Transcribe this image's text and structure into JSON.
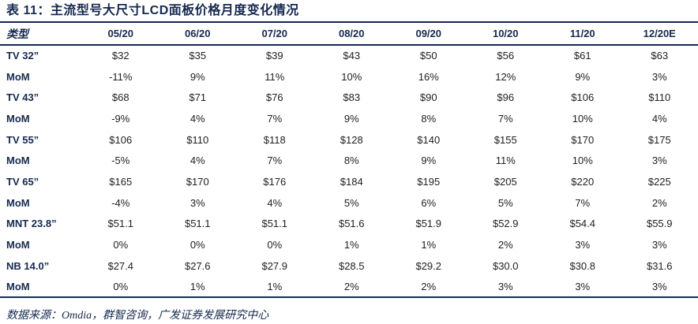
{
  "colors": {
    "navy": "#15294f",
    "data_text": "#212121",
    "background": "#ffffff"
  },
  "table": {
    "title": "表 11：主流型号大尺寸LCD面板价格月度变化情况",
    "columns": [
      "类型",
      "05/20",
      "06/20",
      "07/20",
      "08/20",
      "09/20",
      "10/20",
      "11/20",
      "12/20E"
    ],
    "rows": [
      {
        "label": "TV 32”",
        "values": [
          "$32",
          "$35",
          "$39",
          "$43",
          "$50",
          "$56",
          "$61",
          "$63"
        ]
      },
      {
        "label": "MoM",
        "values": [
          "-11%",
          "9%",
          "11%",
          "10%",
          "16%",
          "12%",
          "9%",
          "3%"
        ]
      },
      {
        "label": "TV 43”",
        "values": [
          "$68",
          "$71",
          "$76",
          "$83",
          "$90",
          "$96",
          "$106",
          "$110"
        ]
      },
      {
        "label": "MoM",
        "values": [
          "-9%",
          "4%",
          "7%",
          "9%",
          "8%",
          "7%",
          "10%",
          "4%"
        ]
      },
      {
        "label": "TV 55”",
        "values": [
          "$106",
          "$110",
          "$118",
          "$128",
          "$140",
          "$155",
          "$170",
          "$175"
        ]
      },
      {
        "label": "MoM",
        "values": [
          "-5%",
          "4%",
          "7%",
          "8%",
          "9%",
          "11%",
          "10%",
          "3%"
        ]
      },
      {
        "label": "TV 65”",
        "values": [
          "$165",
          "$170",
          "$176",
          "$184",
          "$195",
          "$205",
          "$220",
          "$225"
        ]
      },
      {
        "label": "MoM",
        "values": [
          "-4%",
          "3%",
          "4%",
          "5%",
          "6%",
          "5%",
          "7%",
          "2%"
        ]
      },
      {
        "label": "MNT 23.8”",
        "values": [
          "$51.1",
          "$51.1",
          "$51.1",
          "$51.6",
          "$51.9",
          "$52.9",
          "$54.4",
          "$55.9"
        ]
      },
      {
        "label": "MoM",
        "values": [
          "0%",
          "0%",
          "0%",
          "1%",
          "1%",
          "2%",
          "3%",
          "3%"
        ]
      },
      {
        "label": "NB 14.0”",
        "values": [
          "$27.4",
          "$27.6",
          "$27.9",
          "$28.5",
          "$29.2",
          "$30.0",
          "$30.8",
          "$31.6"
        ]
      },
      {
        "label": "MoM",
        "values": [
          "0%",
          "1%",
          "1%",
          "2%",
          "2%",
          "3%",
          "3%",
          "3%"
        ]
      }
    ],
    "source": "数据来源：Omdia，群智咨询，广发证券发展研究中心"
  }
}
